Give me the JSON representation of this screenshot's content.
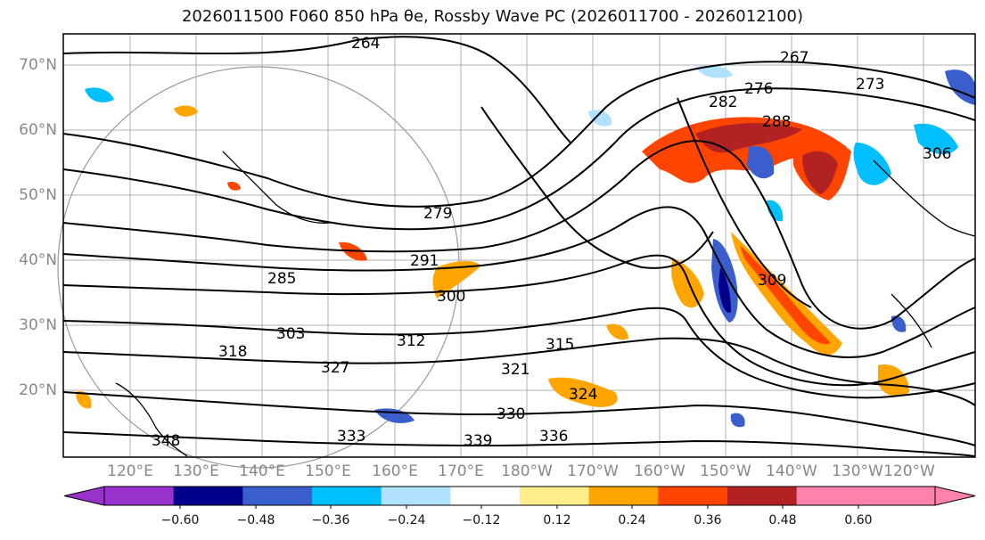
{
  "title": "2026011500 F060 850 hPa θe, Rossby Wave PC (2026011700 - 2026012100)",
  "map": {
    "lat_labels": [
      "70°N",
      "60°N",
      "50°N",
      "40°N",
      "30°N",
      "20°N"
    ],
    "lon_labels": [
      "120°E",
      "130°E",
      "140°E",
      "150°E",
      "160°E",
      "170°E",
      "180°W",
      "170°W",
      "160°W",
      "150°W",
      "140°W",
      "130°W",
      "120°W"
    ],
    "contour_labels": [
      "264",
      "267",
      "273",
      "276",
      "279",
      "282",
      "285",
      "288",
      "291",
      "300",
      "303",
      "306",
      "309",
      "312",
      "315",
      "318",
      "321",
      "324",
      "327",
      "330",
      "333",
      "336",
      "339",
      "348"
    ],
    "field": "850 hPa θe",
    "shading": "Rossby Wave PC"
  },
  "colorbar": {
    "ticks": [
      "−0.60",
      "−0.48",
      "−0.36",
      "−0.24",
      "−0.12",
      "0.12",
      "0.24",
      "0.36",
      "0.48",
      "0.60"
    ],
    "colors": [
      "#9932cc",
      "#00008b",
      "#3a5fcd",
      "#00bfff",
      "#b0e2ff",
      "#ffffff",
      "#ffec8b",
      "#ffa500",
      "#ff4500",
      "#b22222",
      "#ff82ab",
      "#ff82ab"
    ]
  }
}
